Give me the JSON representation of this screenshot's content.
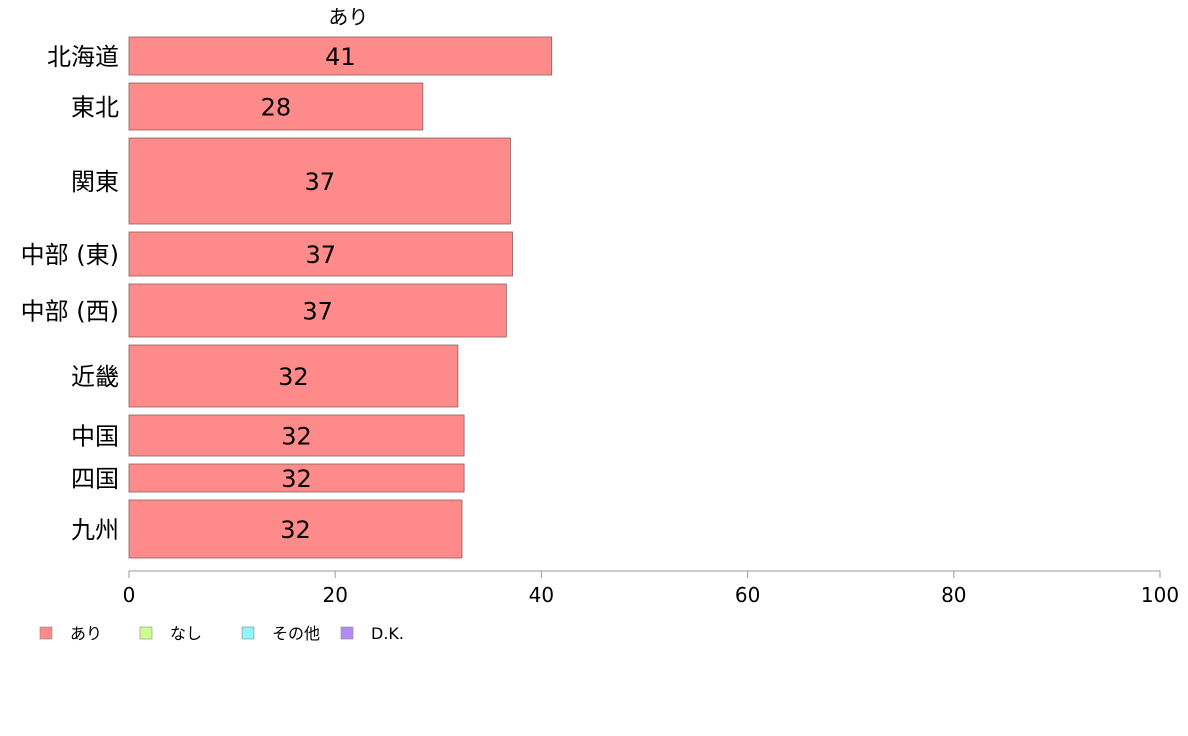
{
  "chart_data": {
    "type": "bar",
    "orientation": "horizontal",
    "stacked": true,
    "title": "",
    "xlabel": "",
    "ylabel": "",
    "xlim": [
      0,
      100
    ],
    "x_ticks": [
      0,
      20,
      40,
      60,
      80,
      100
    ],
    "top_label": "あり",
    "categories": [
      "北海道",
      "東北",
      "関東",
      "中部 (東)",
      "中部 (西)",
      "近畿",
      "中国",
      "四国",
      "九州"
    ],
    "series": [
      {
        "name": "あり",
        "color": "#ff8a8a",
        "values": [
          41,
          28.5,
          37,
          37.2,
          36.6,
          31.9,
          32.5,
          32.5,
          32.3
        ],
        "labels": [
          "41",
          "28",
          "37",
          "37",
          "37",
          "32",
          "32",
          "32",
          "32"
        ]
      },
      {
        "name": "なし",
        "color": "#ccff8f",
        "values": [
          0,
          0,
          0,
          0,
          0,
          0,
          0,
          0,
          0
        ]
      },
      {
        "name": "その他",
        "color": "#8ff5f5",
        "values": [
          0,
          0,
          0,
          0,
          0,
          0,
          0,
          0,
          0
        ]
      },
      {
        "name": "D.K.",
        "color": "#b58af5",
        "values": [
          0,
          0,
          0,
          0,
          0,
          0,
          0,
          0,
          0
        ]
      }
    ],
    "grid": false,
    "legend_position": "bottom-left"
  }
}
